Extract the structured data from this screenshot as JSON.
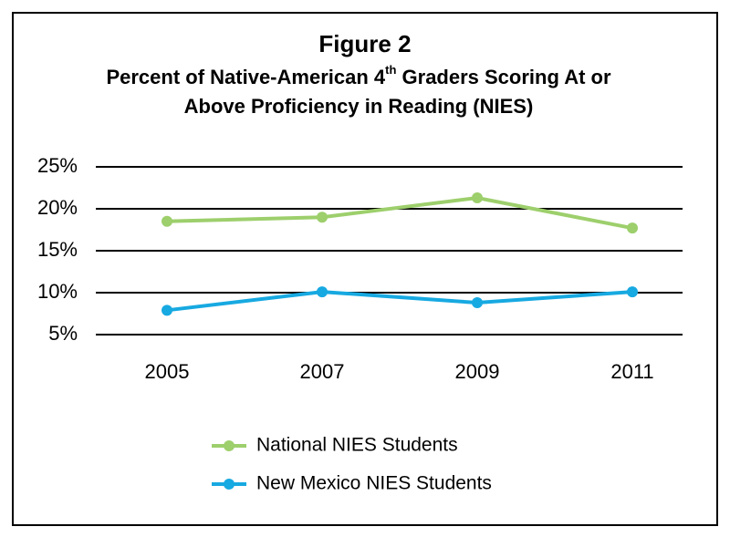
{
  "chart_data": {
    "type": "line",
    "title": "Figure 2",
    "subtitle": [
      "Percent of Native-American 4",
      "th",
      " Graders Scoring At or",
      "Above Proficiency in Reading (NIES)"
    ],
    "categories": [
      "2005",
      "2007",
      "2009",
      "2011"
    ],
    "series": [
      {
        "name": "National NIES Students",
        "color": "#9dcf6c",
        "values": [
          18.5,
          19.0,
          21.3,
          17.7
        ]
      },
      {
        "name": "New Mexico NIES Students",
        "color": "#17a9e1",
        "values": [
          7.9,
          10.1,
          8.8,
          10.1
        ]
      }
    ],
    "ylim": [
      5,
      25
    ],
    "yticks": [
      {
        "value": 5,
        "label": "5%"
      },
      {
        "value": 10,
        "label": "10%"
      },
      {
        "value": 15,
        "label": "15%"
      },
      {
        "value": 20,
        "label": "20%"
      },
      {
        "value": 25,
        "label": "25%"
      }
    ],
    "grid": true
  }
}
